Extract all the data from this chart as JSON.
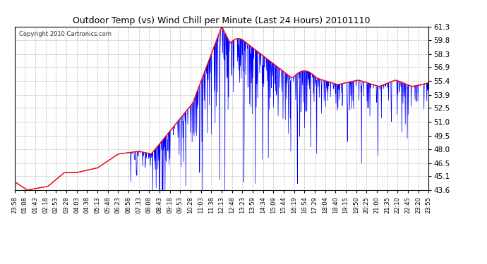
{
  "title": "Outdoor Temp (vs) Wind Chill per Minute (Last 24 Hours) 20101110",
  "copyright": "Copyright 2010 Cartronics.com",
  "ylim": [
    43.6,
    61.3
  ],
  "yticks": [
    43.6,
    45.1,
    46.5,
    48.0,
    49.5,
    51.0,
    52.5,
    53.9,
    55.4,
    56.9,
    58.3,
    59.8,
    61.3
  ],
  "background_color": "#ffffff",
  "grid_color": "#bbbbbb",
  "red_line_color": "#ff0000",
  "blue_line_color": "#0000ff",
  "x_tick_labels": [
    "23:58",
    "01:08",
    "01:43",
    "02:18",
    "02:53",
    "03:28",
    "04:03",
    "04:38",
    "05:13",
    "05:48",
    "06:23",
    "06:58",
    "07:33",
    "08:08",
    "08:43",
    "09:18",
    "09:53",
    "10:28",
    "11:03",
    "11:38",
    "12:13",
    "12:48",
    "13:23",
    "13:59",
    "14:34",
    "15:09",
    "15:44",
    "16:19",
    "16:54",
    "17:29",
    "18:04",
    "18:40",
    "19:15",
    "19:50",
    "20:25",
    "21:00",
    "21:35",
    "22:10",
    "22:45",
    "23:20",
    "23:55"
  ]
}
